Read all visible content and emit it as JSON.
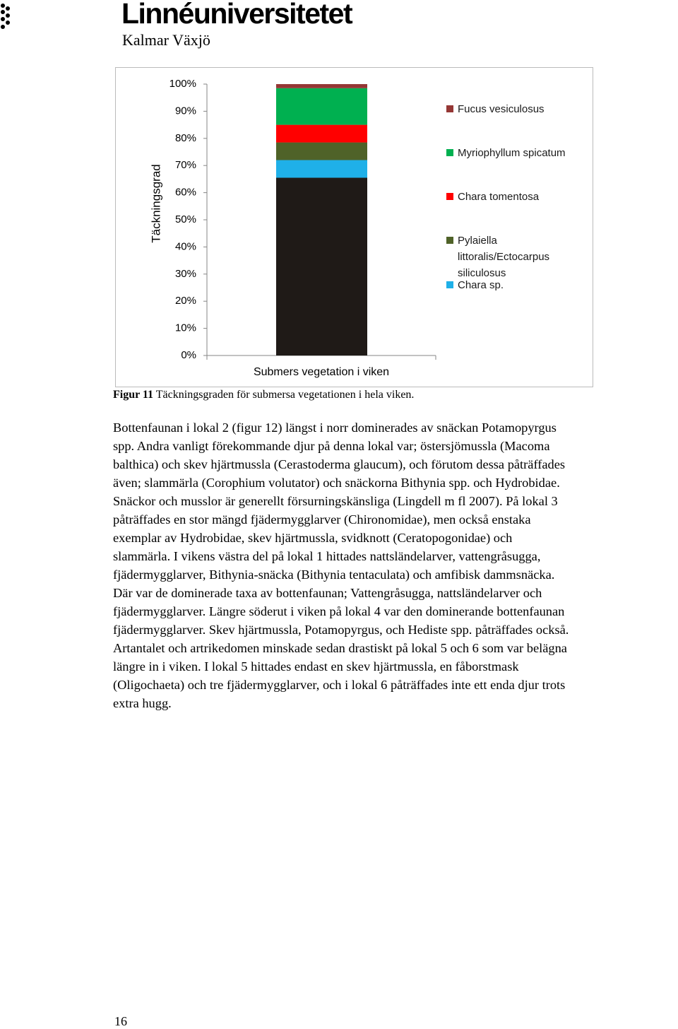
{
  "header": {
    "logo": "Linnéuniversitetet",
    "campus": "Kalmar Växjö"
  },
  "chart_data": {
    "type": "stacked-bar",
    "legend": "right",
    "ylabel": "Täckningsgrad",
    "categories": [
      "Submers vegetation i viken"
    ],
    "ylim": [
      0,
      100
    ],
    "yticks": [
      {
        "value": 0,
        "label": "0%"
      },
      {
        "value": 10,
        "label": "10%"
      },
      {
        "value": 20,
        "label": "20%"
      },
      {
        "value": 30,
        "label": "30%"
      },
      {
        "value": 40,
        "label": "40%"
      },
      {
        "value": 50,
        "label": "50%"
      },
      {
        "value": 60,
        "label": "60%"
      },
      {
        "value": 70,
        "label": "70%"
      },
      {
        "value": 80,
        "label": "80%"
      },
      {
        "value": 90,
        "label": "90%"
      },
      {
        "value": 100,
        "label": "100%"
      }
    ],
    "series": [
      {
        "color": "#1f1a17",
        "values": [
          65.5
        ]
      },
      {
        "name": "Chara sp.",
        "color": "#1fb0e8",
        "values": [
          6.5
        ]
      },
      {
        "name": "Pylaiella littoralis/Ectocarpus siliculosus",
        "color": "#4f6228",
        "values": [
          6.5
        ]
      },
      {
        "name": "Chara tomentosa",
        "color": "#ff0000",
        "values": [
          6.5
        ]
      },
      {
        "name": "Myriophyllum spicatum",
        "color": "#00b050",
        "values": [
          13.5
        ]
      },
      {
        "name": "Fucus vesiculosus",
        "color": "#953735",
        "values": [
          1.5
        ]
      }
    ]
  },
  "caption": {
    "label": "Figur 11",
    "text": "Täckningsgraden för submersa vegetationen i hela viken."
  },
  "paragraph": [
    "Bottenfaunan i lokal 2 (figur 12) längst i norr dominerades av snäckan Potamopyrgus",
    "spp. Andra vanligt förekommande djur på denna lokal var; östersjömussla (Macoma",
    "balthica) och skev hjärtmussla (Cerastoderma glaucum), och förutom dessa påträffades",
    "även; slammärla (Corophium volutator) och snäckorna Bithynia spp. och Hydrobidae.",
    "Snäckor och musslor är generellt försurningskänsliga (Lingdell m fl 2007). På lokal 3",
    "påträffades en stor mängd fjädermygglarver (Chironomidae), men också enstaka",
    "exemplar av Hydrobidae, skev hjärtmussla, svidknott (Ceratopogonidae) och",
    "slammärla. I vikens västra del på lokal 1 hittades nattsländelarver, vattengråsugga,",
    "fjädermygglarver, Bithynia-snäcka (Bithynia tentaculata) och amfibisk dammsnäcka.",
    "Där var de dominerade taxa av bottenfaunan; Vattengråsugga, nattsländelarver och",
    "fjädermygglarver. Längre söderut i viken på lokal 4 var den dominerande bottenfaunan",
    "fjädermygglarver. Skev hjärtmussla, Potamopyrgus, och Hediste spp. påträffades också.",
    "Artantalet och artrikedomen minskade sedan drastiskt på lokal 5 och 6 som var belägna",
    "längre in i viken. I lokal 5 hittades endast en skev hjärtmussla, en fåborstmask",
    "(Oligochaeta) och tre fjädermygglarver, och i lokal 6 påträffades inte ett enda djur trots",
    "extra hugg."
  ],
  "page_number": "16"
}
